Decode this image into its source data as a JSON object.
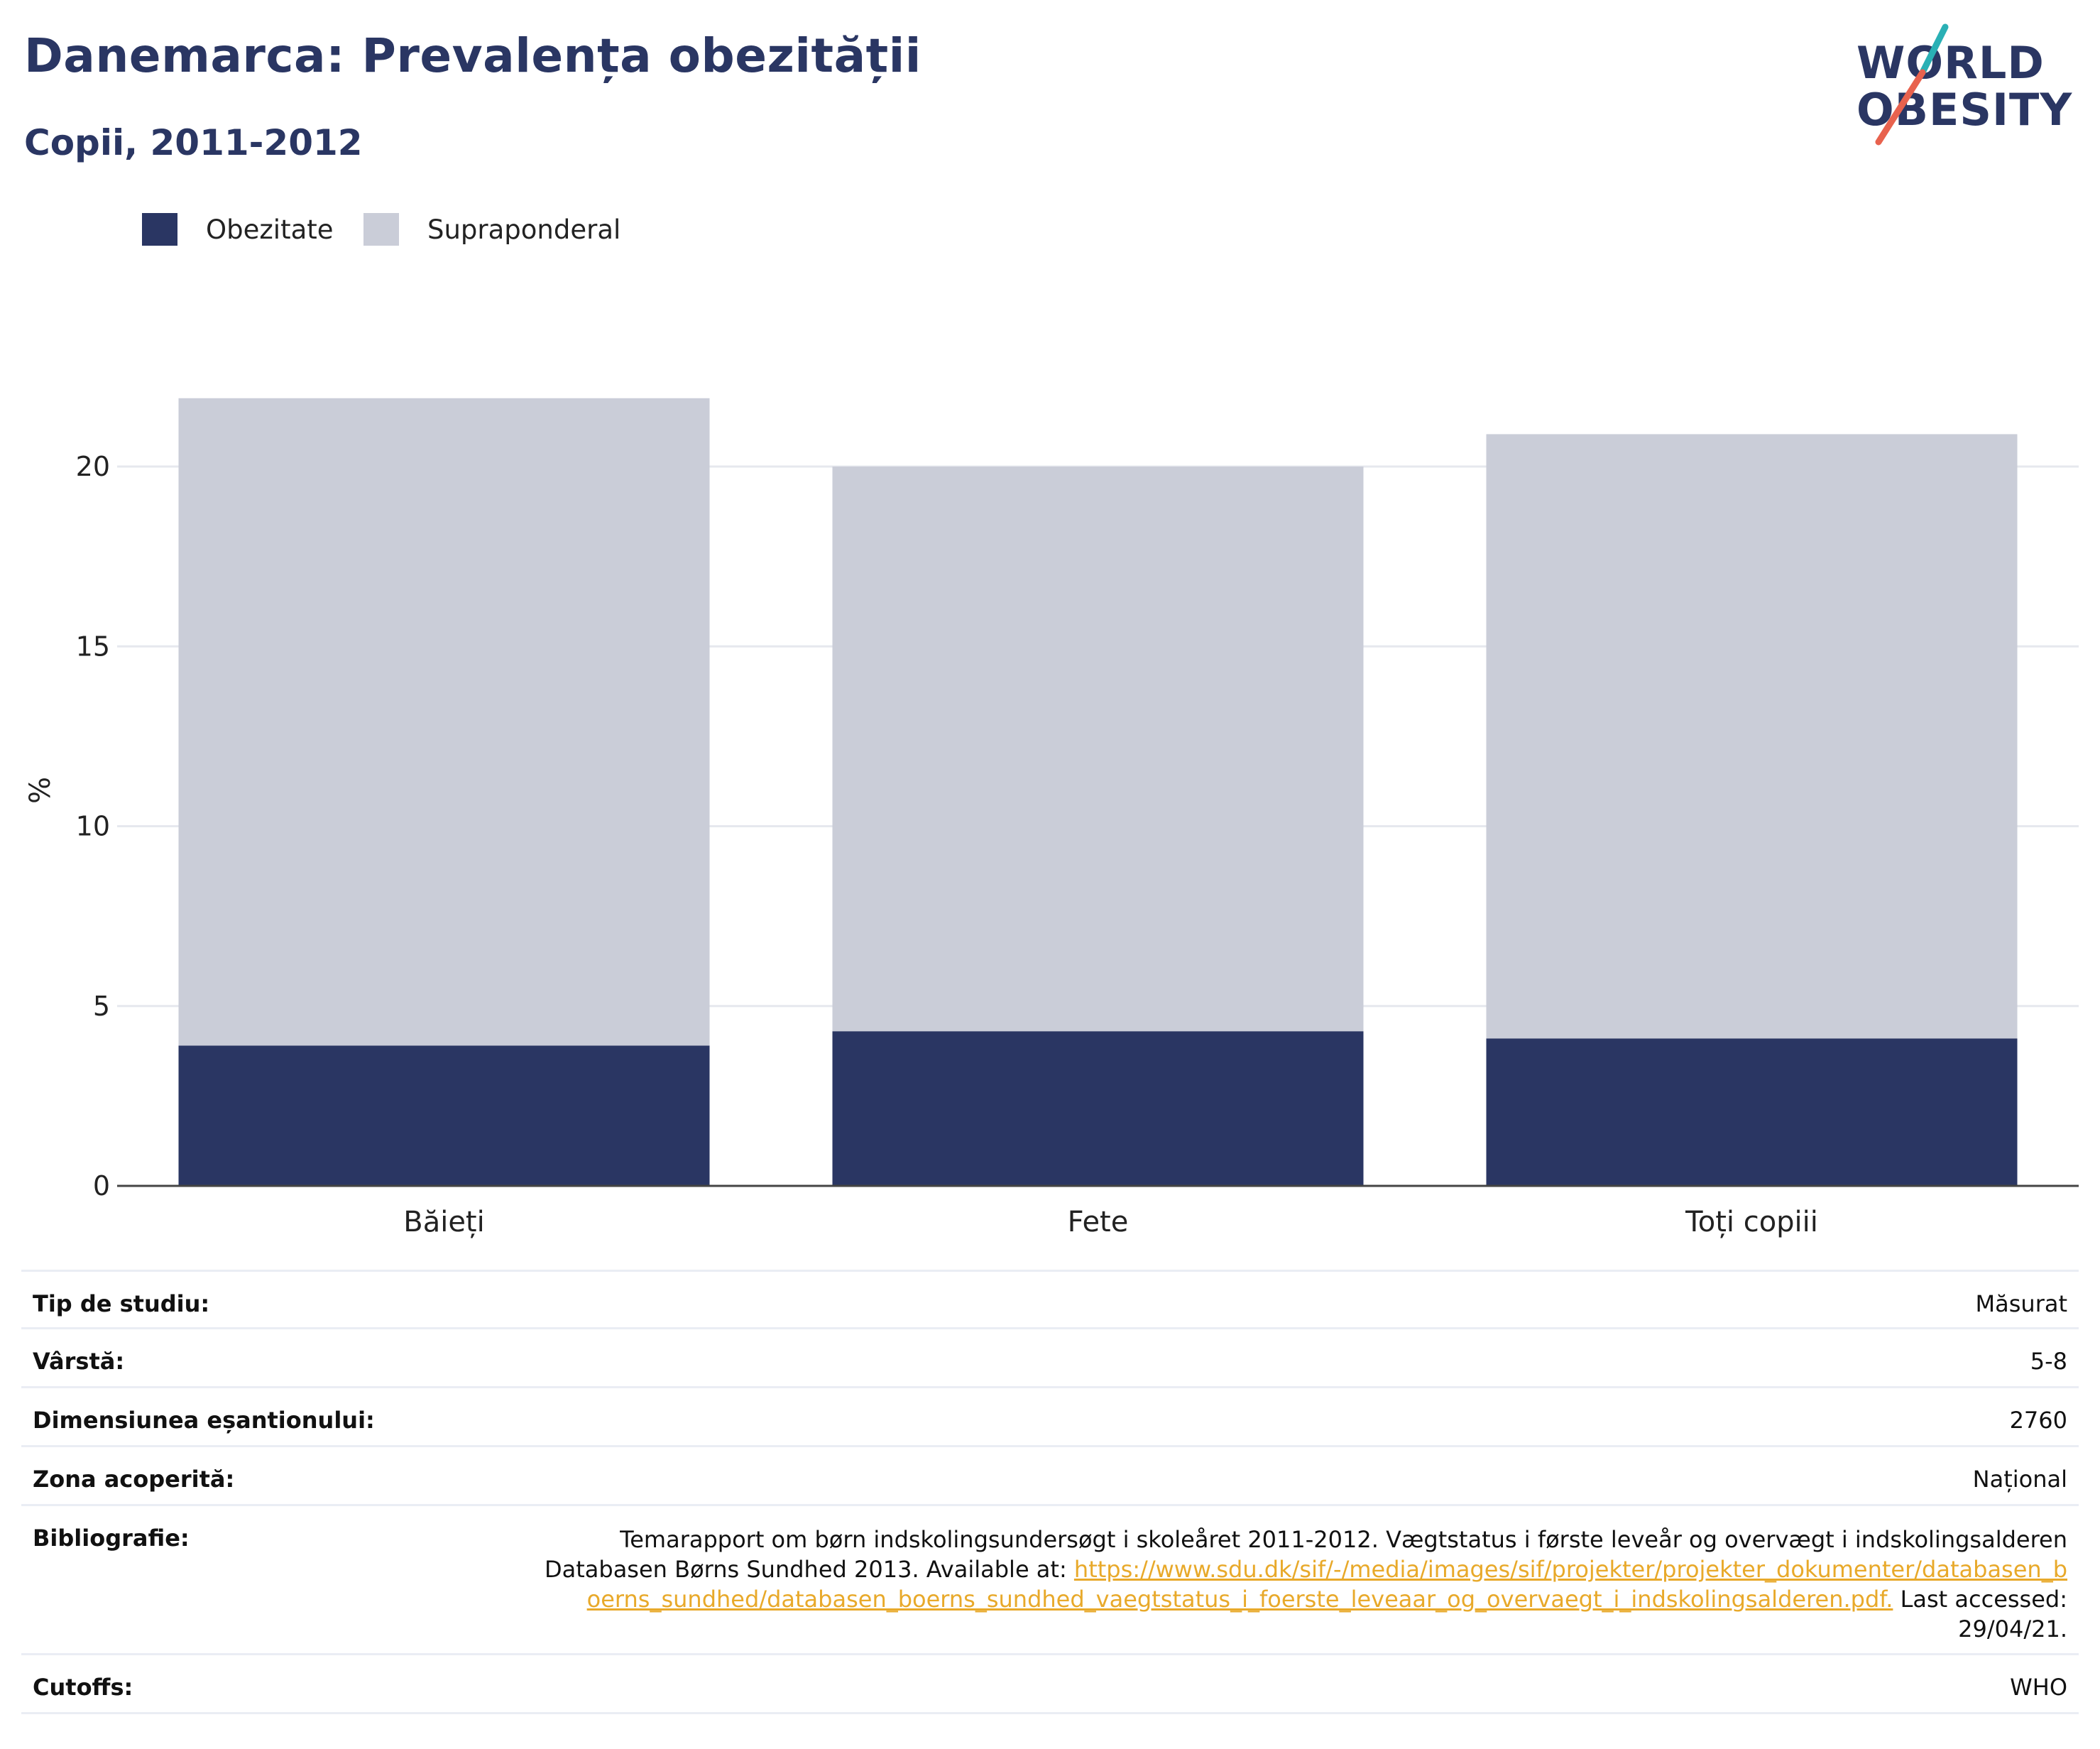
{
  "header": {
    "title": "Danemarca: Prevalența obezității",
    "subtitle": "Copii, 2011-2012"
  },
  "logo": {
    "line1": "WORLD",
    "line2": "OBESITY",
    "colors": {
      "text": "#2a3663",
      "slash_top": "#2ab0b5",
      "slash_bottom": "#e8624e"
    }
  },
  "legend": {
    "items": [
      {
        "label": "Obezitate",
        "color": "#2a3663"
      },
      {
        "label": "Supraponderal",
        "color": "#cacdd8"
      }
    ]
  },
  "chart_data": {
    "type": "bar",
    "stacked": true,
    "title": "",
    "xlabel": "",
    "ylabel": "%",
    "categories": [
      "Băieți",
      "Fete",
      "Toți copiii"
    ],
    "series": [
      {
        "name": "Obezitate",
        "values": [
          3.9,
          4.3,
          4.1
        ],
        "color": "#2a3663"
      },
      {
        "name": "Supraponderal",
        "values": [
          18.0,
          15.7,
          16.8
        ],
        "color": "#cacdd8"
      }
    ],
    "ylim": [
      0,
      22
    ],
    "yticks": [
      0,
      5,
      10,
      15,
      20
    ],
    "grid": true,
    "legend_position": "top-left"
  },
  "info": {
    "rows": [
      {
        "label": "Tip de studiu:",
        "value": "Măsurat"
      },
      {
        "label": "Vârstă:",
        "value": "5-8"
      },
      {
        "label": "Dimensiunea eșantionului:",
        "value": "2760"
      },
      {
        "label": "Zona acoperită:",
        "value": "Național"
      }
    ],
    "bibliography": {
      "label": "Bibliografie:",
      "text": "Temarapport om børn indskolingsundersøgt i skoleåret 2011-2012. Vægtstatus i første leveår og overvægt i indskolingsalderen Databasen Børns Sundhed 2013. Available at: ",
      "link": "https://www.sdu.dk/sif/-/media/images/sif/projekter/projekter_dokumenter/databasen_boerns_sundhed/databasen_boerns_sundhed_vaegtstatus_i_foerste_leveaar_og_overvaegt_i_indskolingsalderen.pdf.",
      "suffix": " Last accessed: 29/04/21."
    },
    "cutoffs": {
      "label": "Cutoffs:",
      "value": "WHO"
    }
  }
}
